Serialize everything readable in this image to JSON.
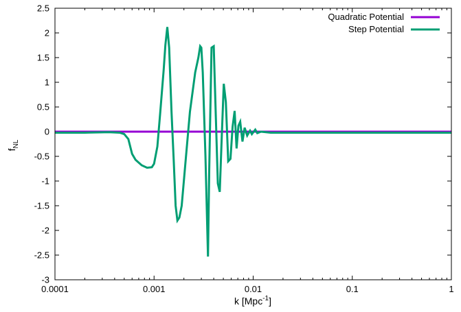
{
  "chart_data": {
    "type": "line",
    "xlabel": {
      "main": "k [Mpc",
      "sup": "-1",
      "tail": "]"
    },
    "ylabel": {
      "main": "f",
      "sub": "NL"
    },
    "xscale": "log",
    "xlim": [
      0.0001,
      1
    ],
    "ylim": [
      -3,
      2.5
    ],
    "grid": false,
    "legend_position": "top-right",
    "x_ticks": [
      {
        "value": 0.0001,
        "label": "0.0001"
      },
      {
        "value": 0.001,
        "label": "0.001"
      },
      {
        "value": 0.01,
        "label": "0.01"
      },
      {
        "value": 0.1,
        "label": "0.1"
      },
      {
        "value": 1,
        "label": "1"
      }
    ],
    "y_ticks": [
      {
        "value": 2.5,
        "label": "2.5"
      },
      {
        "value": 2,
        "label": "2"
      },
      {
        "value": 1.5,
        "label": "1.5"
      },
      {
        "value": 1,
        "label": "1"
      },
      {
        "value": 0.5,
        "label": "0.5"
      },
      {
        "value": 0,
        "label": "0"
      },
      {
        "value": -0.5,
        "label": "-0.5"
      },
      {
        "value": -1,
        "label": "-1"
      },
      {
        "value": -1.5,
        "label": "-1.5"
      },
      {
        "value": -2,
        "label": "-2"
      },
      {
        "value": -2.5,
        "label": "-2.5"
      },
      {
        "value": -3,
        "label": "-3"
      }
    ],
    "series": [
      {
        "name": "Quadratic Potential",
        "color": "#9400d3",
        "points": [
          [
            0.0001,
            0
          ],
          [
            1,
            0
          ]
        ]
      },
      {
        "name": "Step Potential",
        "color": "#009e73",
        "points": [
          [
            0.0001,
            -0.02
          ],
          [
            0.0002,
            -0.02
          ],
          [
            0.00035,
            -0.01
          ],
          [
            0.00045,
            -0.02
          ],
          [
            0.0005,
            -0.05
          ],
          [
            0.00055,
            -0.15
          ],
          [
            0.0006,
            -0.45
          ],
          [
            0.00065,
            -0.57
          ],
          [
            0.00075,
            -0.68
          ],
          [
            0.00085,
            -0.73
          ],
          [
            0.00095,
            -0.72
          ],
          [
            0.001,
            -0.65
          ],
          [
            0.00108,
            -0.3
          ],
          [
            0.00115,
            0.35
          ],
          [
            0.00125,
            1.25
          ],
          [
            0.0013,
            1.75
          ],
          [
            0.00136,
            2.12
          ],
          [
            0.00142,
            1.7
          ],
          [
            0.0015,
            0.4
          ],
          [
            0.00158,
            -0.6
          ],
          [
            0.00165,
            -1.5
          ],
          [
            0.00172,
            -1.8
          ],
          [
            0.0018,
            -1.74
          ],
          [
            0.0019,
            -1.5
          ],
          [
            0.0021,
            -0.5
          ],
          [
            0.0023,
            0.4
          ],
          [
            0.0026,
            1.2
          ],
          [
            0.0028,
            1.5
          ],
          [
            0.00292,
            1.73
          ],
          [
            0.003,
            1.7
          ],
          [
            0.0031,
            1.2
          ],
          [
            0.0033,
            -0.5
          ],
          [
            0.0035,
            -2.53
          ],
          [
            0.0036,
            -0.8
          ],
          [
            0.0038,
            1.7
          ],
          [
            0.004,
            1.73
          ],
          [
            0.0042,
            0.3
          ],
          [
            0.0044,
            -1.05
          ],
          [
            0.0046,
            -1.22
          ],
          [
            0.0048,
            -0.2
          ],
          [
            0.00505,
            0.97
          ],
          [
            0.0053,
            0.6
          ],
          [
            0.0056,
            -0.6
          ],
          [
            0.0059,
            -0.55
          ],
          [
            0.0062,
            0.1
          ],
          [
            0.0065,
            0.42
          ],
          [
            0.0068,
            -0.34
          ],
          [
            0.0071,
            0.12
          ],
          [
            0.0074,
            0.2
          ],
          [
            0.0078,
            -0.2
          ],
          [
            0.0082,
            0.08
          ],
          [
            0.0087,
            -0.08
          ],
          [
            0.0093,
            0.02
          ],
          [
            0.0097,
            -0.05
          ],
          [
            0.0105,
            0.04
          ],
          [
            0.011,
            -0.03
          ],
          [
            0.012,
            0.0
          ],
          [
            0.015,
            -0.02
          ],
          [
            0.03,
            -0.02
          ],
          [
            1,
            -0.02
          ]
        ]
      }
    ]
  }
}
